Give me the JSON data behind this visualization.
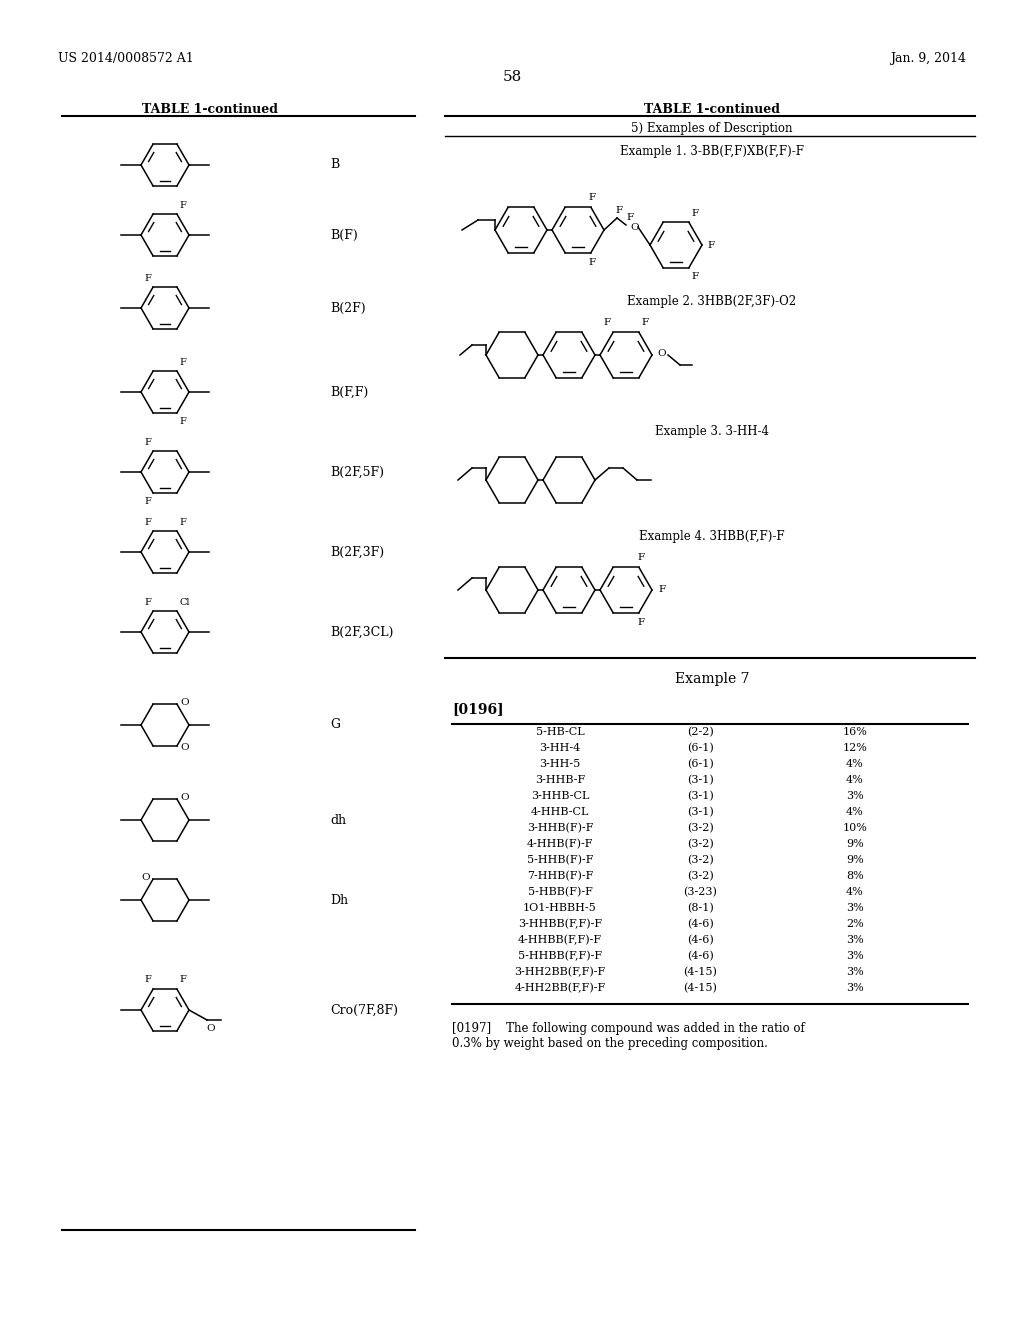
{
  "bg_color": "#ffffff",
  "header_left": "US 2014/0008572 A1",
  "header_right": "Jan. 9, 2014",
  "page_number": "58",
  "left_table_title": "TABLE 1-continued",
  "right_table_title": "TABLE 1-continued",
  "right_table_subtitle": "5) Examples of Description",
  "left_labels": [
    "B",
    "B(F)",
    "B(2F)",
    "B(F,F)",
    "B(2F,5F)",
    "B(2F,3F)",
    "B(2F,3CL)",
    "G",
    "dh",
    "Dh",
    "Cro(7F,8F)"
  ],
  "right_examples": [
    "Example 1. 3-BB(F,F)XB(F,F)-F",
    "Example 2. 3HBB(2F,3F)-O2",
    "Example 3. 3-HH-4",
    "Example 4. 3HBB(F,F)-F"
  ],
  "example7_label": "Example 7",
  "paragraph0196": "[0196]",
  "table_data": [
    [
      "5-HB-CL",
      "(2-2)",
      "16%"
    ],
    [
      "3-HH-4",
      "(6-1)",
      "12%"
    ],
    [
      "3-HH-5",
      "(6-1)",
      "4%"
    ],
    [
      "3-HHB-F",
      "(3-1)",
      "4%"
    ],
    [
      "3-HHB-CL",
      "(3-1)",
      "3%"
    ],
    [
      "4-HHB-CL",
      "(3-1)",
      "4%"
    ],
    [
      "3-HHB(F)-F",
      "(3-2)",
      "10%"
    ],
    [
      "4-HHB(F)-F",
      "(3-2)",
      "9%"
    ],
    [
      "5-HHB(F)-F",
      "(3-2)",
      "9%"
    ],
    [
      "7-HHB(F)-F",
      "(3-2)",
      "8%"
    ],
    [
      "5-HBB(F)-F",
      "(3-23)",
      "4%"
    ],
    [
      "1O1-HBBH-5",
      "(8-1)",
      "3%"
    ],
    [
      "3-HHBB(F,F)-F",
      "(4-6)",
      "2%"
    ],
    [
      "4-HHBB(F,F)-F",
      "(4-6)",
      "3%"
    ],
    [
      "5-HHBB(F,F)-F",
      "(4-6)",
      "3%"
    ],
    [
      "3-HH2BB(F,F)-F",
      "(4-15)",
      "3%"
    ],
    [
      "4-HH2BB(F,F)-F",
      "(4-15)",
      "3%"
    ]
  ],
  "paragraph0197_1": "[0197]    The following compound was added in the ratio of",
  "paragraph0197_2": "0.3% by weight based on the preceding composition."
}
